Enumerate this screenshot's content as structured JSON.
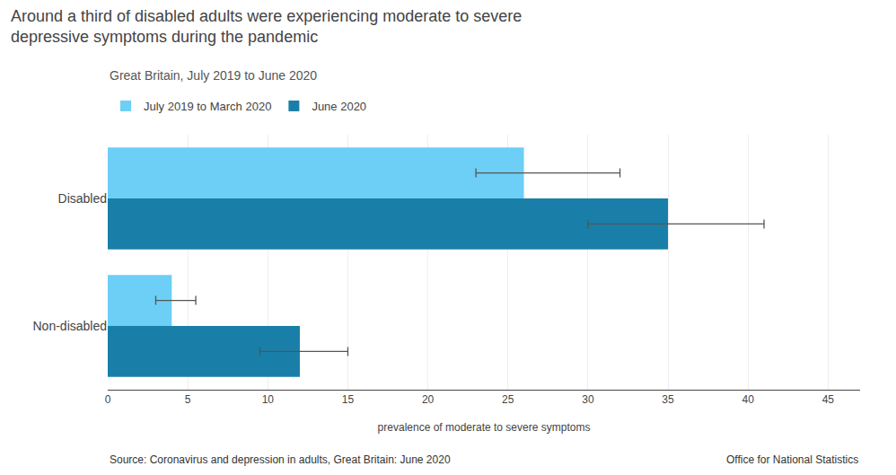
{
  "chart_data": {
    "type": "bar",
    "orientation": "horizontal",
    "title": [
      "Around a third of disabled adults were experiencing moderate to severe",
      "depressive symptoms during the pandemic"
    ],
    "subtitle": "Great Britain, July 2019 to June 2020",
    "xlabel": "prevalence of moderate to severe symptoms",
    "categories": [
      "Disabled",
      "Non-disabled"
    ],
    "series": [
      {
        "name": "July 2019 to March 2020",
        "color": "#6dcff6",
        "values": [
          26,
          4
        ],
        "error_minus": [
          3,
          1
        ],
        "error_plus": [
          6,
          1.5
        ]
      },
      {
        "name": "June 2020",
        "color": "#1a7fa8",
        "values": [
          35,
          12
        ],
        "error_minus": [
          5,
          2.5
        ],
        "error_plus": [
          6,
          3
        ]
      }
    ],
    "xlim": [
      0,
      47
    ],
    "xticks": [
      0,
      5,
      10,
      15,
      20,
      25,
      30,
      35,
      40,
      45
    ],
    "grid": true,
    "legend": "upper left",
    "annotations": [
      "Source: Coronavirus and depression in adults, Great Britain: June 2020",
      "Office for National Statistics"
    ]
  }
}
